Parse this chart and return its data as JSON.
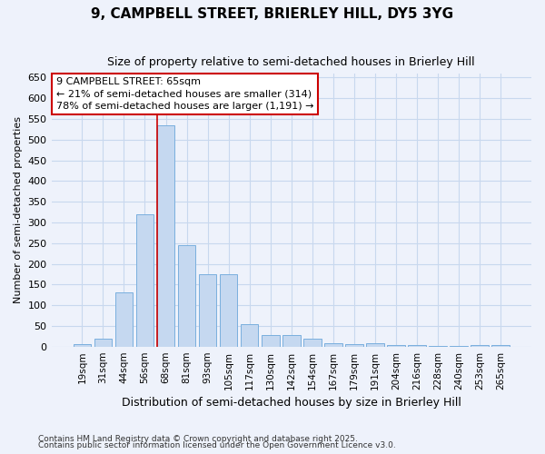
{
  "title": "9, CAMPBELL STREET, BRIERLEY HILL, DY5 3YG",
  "subtitle": "Size of property relative to semi-detached houses in Brierley Hill",
  "xlabel": "Distribution of semi-detached houses by size in Brierley Hill",
  "ylabel": "Number of semi-detached properties",
  "footer1": "Contains HM Land Registry data © Crown copyright and database right 2025.",
  "footer2": "Contains public sector information licensed under the Open Government Licence v3.0.",
  "bar_labels": [
    "19sqm",
    "31sqm",
    "44sqm",
    "56sqm",
    "68sqm",
    "81sqm",
    "93sqm",
    "105sqm",
    "117sqm",
    "130sqm",
    "142sqm",
    "154sqm",
    "167sqm",
    "179sqm",
    "191sqm",
    "204sqm",
    "216sqm",
    "228sqm",
    "240sqm",
    "253sqm",
    "265sqm"
  ],
  "bar_heights": [
    5,
    20,
    130,
    320,
    535,
    245,
    175,
    175,
    55,
    27,
    27,
    18,
    8,
    5,
    8,
    3,
    3,
    1,
    1,
    3,
    3
  ],
  "bar_color": "#c5d8f0",
  "bar_edge_color": "#7aafde",
  "grid_color": "#c8d8ee",
  "background_color": "#eef2fb",
  "plot_bg_color": "#eef2fb",
  "vline_x_index": 4,
  "vline_color": "#cc0000",
  "annotation_title": "9 CAMPBELL STREET: 65sqm",
  "annotation_line1": "← 21% of semi-detached houses are smaller (314)",
  "annotation_line2": "78% of semi-detached houses are larger (1,191) →",
  "annotation_box_color": "white",
  "annotation_box_edgecolor": "#cc0000",
  "ylim": [
    0,
    660
  ],
  "yticks": [
    0,
    50,
    100,
    150,
    200,
    250,
    300,
    350,
    400,
    450,
    500,
    550,
    600,
    650
  ]
}
